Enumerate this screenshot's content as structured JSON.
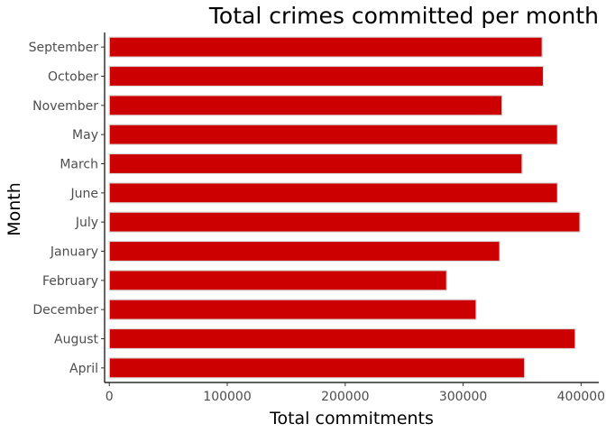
{
  "chart_data": {
    "type": "bar",
    "orientation": "horizontal",
    "title": "Total crimes committed per month",
    "xlabel": "Total commitments",
    "ylabel": "Month",
    "categories": [
      "April",
      "August",
      "December",
      "February",
      "January",
      "July",
      "June",
      "March",
      "May",
      "November",
      "October",
      "September"
    ],
    "values": [
      352000,
      395000,
      311000,
      286000,
      331000,
      399000,
      380000,
      350000,
      380000,
      333000,
      368000,
      367000
    ],
    "xlim": [
      -4000,
      415000
    ],
    "xticks": [
      0,
      100000,
      200000,
      300000,
      400000
    ],
    "xtick_labels": [
      "0",
      "100000",
      "200000",
      "300000",
      "400000"
    ],
    "bar_color": "#cc0000",
    "bar_outline_color": "#d9d9d9",
    "grid": false,
    "legend": "none"
  }
}
